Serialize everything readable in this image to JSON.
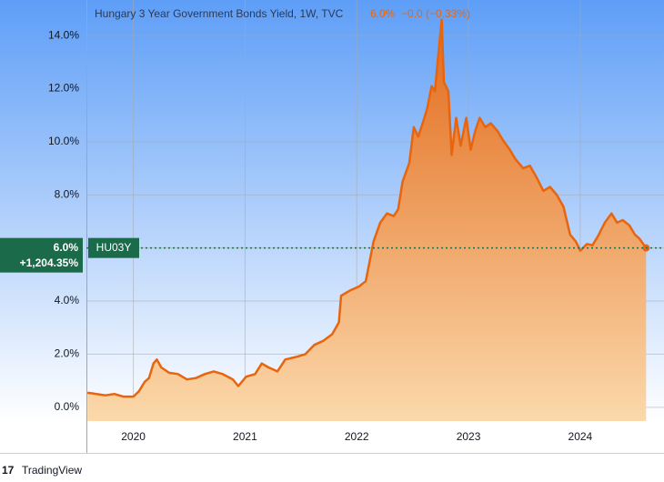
{
  "chart_data": {
    "type": "area",
    "title": "Hungary 3 Year Government Bonds Yield, 1W, TVC",
    "last": {
      "value": 6.0,
      "label": "6.0%"
    },
    "change": "−0.0 (−0.33%)",
    "total_change": "+1,204.35%",
    "brand": "TradingView",
    "x": [
      2019.59,
      2019.67,
      2019.75,
      2019.83,
      2019.91,
      2020.0,
      2020.05,
      2020.1,
      2020.14,
      2020.18,
      2020.21,
      2020.25,
      2020.32,
      2020.4,
      2020.48,
      2020.56,
      2020.64,
      2020.72,
      2020.8,
      2020.89,
      2020.94,
      2021.01,
      2021.09,
      2021.15,
      2021.21,
      2021.29,
      2021.36,
      2021.46,
      2021.54,
      2021.62,
      2021.7,
      2021.78,
      2021.84,
      2021.86,
      2021.94,
      2022.02,
      2022.08,
      2022.15,
      2022.21,
      2022.27,
      2022.33,
      2022.37,
      2022.41,
      2022.47,
      2022.51,
      2022.55,
      2022.59,
      2022.63,
      2022.67,
      2022.7,
      2022.73,
      2022.76,
      2022.78,
      2022.82,
      2022.85,
      2022.89,
      2022.93,
      2022.98,
      2023.02,
      2023.06,
      2023.1,
      2023.15,
      2023.2,
      2023.26,
      2023.31,
      2023.37,
      2023.42,
      2023.49,
      2023.55,
      2023.61,
      2023.67,
      2023.73,
      2023.79,
      2023.85,
      2023.91,
      2023.96,
      2024.0,
      2024.06,
      2024.11,
      2024.16,
      2024.22,
      2024.28,
      2024.33,
      2024.38,
      2024.44,
      2024.49,
      2024.53,
      2024.59
    ],
    "series": [
      {
        "name": "HU03Y",
        "color": "#e8650e",
        "values": [
          0.55,
          0.5,
          0.45,
          0.5,
          0.4,
          0.4,
          0.6,
          0.95,
          1.1,
          1.65,
          1.8,
          1.5,
          1.3,
          1.25,
          1.05,
          1.1,
          1.25,
          1.35,
          1.25,
          1.05,
          0.8,
          1.15,
          1.25,
          1.65,
          1.5,
          1.35,
          1.8,
          1.9,
          2.0,
          2.35,
          2.5,
          2.75,
          3.2,
          4.2,
          4.4,
          4.55,
          4.75,
          6.25,
          6.95,
          7.3,
          7.2,
          7.45,
          8.5,
          9.2,
          10.55,
          10.2,
          10.7,
          11.25,
          12.1,
          11.9,
          13.3,
          14.6,
          12.25,
          11.9,
          9.5,
          10.9,
          9.85,
          10.9,
          9.7,
          10.4,
          10.9,
          10.55,
          10.7,
          10.4,
          10.05,
          9.7,
          9.35,
          9.0,
          9.1,
          8.65,
          8.15,
          8.3,
          8.0,
          7.55,
          6.5,
          6.25,
          5.9,
          6.15,
          6.1,
          6.45,
          6.95,
          7.3,
          6.95,
          7.05,
          6.85,
          6.5,
          6.35,
          6.0
        ]
      }
    ],
    "xlim": [
      2019.58,
      2024.75
    ],
    "xticks": [
      2020,
      2021,
      2022,
      2023,
      2024
    ],
    "ylim": [
      -0.52,
      15.34
    ],
    "yticks": [
      {
        "value": 0,
        "label": "0.0%"
      },
      {
        "value": 2,
        "label": "2.0%"
      },
      {
        "value": 4,
        "label": "4.0%"
      },
      {
        "value": 6,
        "label": "6.0%"
      },
      {
        "value": 8,
        "label": "8.0%"
      },
      {
        "value": 10,
        "label": "10.0%"
      },
      {
        "value": 12,
        "label": "12.0%"
      },
      {
        "value": 14,
        "label": "14.0%"
      }
    ],
    "grid": true
  }
}
